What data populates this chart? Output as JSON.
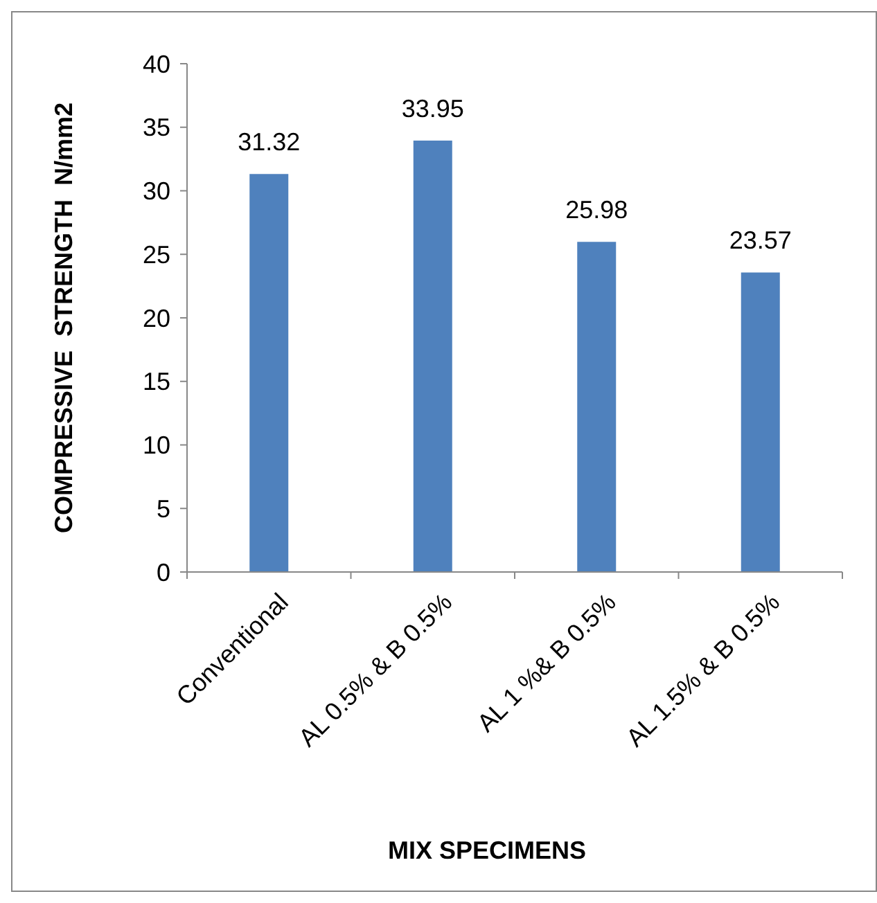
{
  "chart_data": {
    "type": "bar",
    "xlabel": "MIX SPECIMENS",
    "ylabel": "COMPRESSIVE  STRENGTH  N/mm2",
    "categories": [
      "Conventional",
      "AL 0.5% & B 0.5%",
      "AL 1 %& B 0.5%",
      "AL 1.5% & B 0.5%"
    ],
    "values": [
      31.32,
      33.95,
      25.98,
      23.57
    ],
    "color": "#4f81bd",
    "ylim": [
      0,
      40
    ],
    "yticks": [
      0,
      5,
      10,
      15,
      20,
      25,
      30,
      35,
      40
    ],
    "grid": false,
    "data_labels": true
  }
}
